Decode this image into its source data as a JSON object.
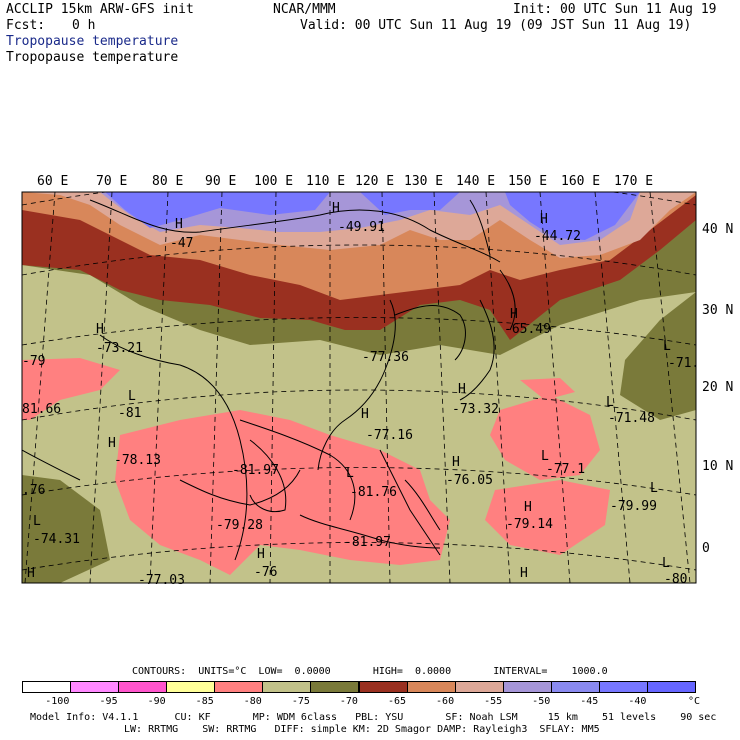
{
  "header": {
    "model": "ACCLIP 15km ARW-GFS init",
    "org": "NCAR/MMM",
    "init": "Init: 00 UTC Sun 11 Aug 19",
    "fcst_label": "Fcst:",
    "fcst_value": "0 h",
    "valid": "Valid: 00 UTC Sun 11 Aug 19 (09 JST Sun 11 Aug 19)",
    "field_title_1": "Tropopause temperature",
    "field_title_2": "Tropopause temperature"
  },
  "map": {
    "lon_labels": [
      "60 E",
      "70 E",
      "80 E",
      "90 E",
      "100 E",
      "110 E",
      "120 E",
      "130 E",
      "140 E",
      "150 E",
      "160 E",
      "170 E"
    ],
    "lat_labels": [
      "40 N",
      "30 N",
      "20 N",
      "10 N",
      "0"
    ],
    "colors": {
      "lt_m95": "#ff88ff",
      "m95_m90": "#ff55cc",
      "m90_m85": "#ffff99",
      "m85_m80": "#ff8080",
      "m80_m75": "#c2c28a",
      "m75_m70": "#7a7a3a",
      "m70_m65": "#9a3020",
      "m65_m60": "#d8875a",
      "m60_m55": "#dda898",
      "m55_m50": "#a696d8",
      "m50_m45": "#8a8af0",
      "gt_m45": "#7777ff"
    },
    "extremes": [
      {
        "type": "H",
        "value": "-47"
      },
      {
        "type": "H",
        "value": "-49.91"
      },
      {
        "type": "H",
        "value": "-44.72"
      },
      {
        "type": "H",
        "value": "-73.21"
      },
      {
        "type": "H",
        "value": "-65.49"
      },
      {
        "type": "",
        "value": "-77.36"
      },
      {
        "type": "",
        "value": "-79"
      },
      {
        "type": "L",
        "value": "-71."
      },
      {
        "type": "L",
        "value": "-81"
      },
      {
        "type": "",
        "value": "81.66"
      },
      {
        "type": "H",
        "value": "-73.32"
      },
      {
        "type": "L",
        "value": "-71.48"
      },
      {
        "type": "H",
        "value": "-77.16"
      },
      {
        "type": "H",
        "value": "-78.13"
      },
      {
        "type": "",
        "value": "-81.97"
      },
      {
        "type": "L",
        "value": "-81.76"
      },
      {
        "type": "H",
        "value": "-76.05"
      },
      {
        "type": "L",
        "value": "-77.1"
      },
      {
        "type": "",
        "value": ".76"
      },
      {
        "type": "L",
        "value": "-79.99"
      },
      {
        "type": "L",
        "value": "-74.31"
      },
      {
        "type": "",
        "value": "-79.28"
      },
      {
        "type": "H",
        "value": "-79.14"
      },
      {
        "type": "",
        "value": "-81.97"
      },
      {
        "type": "H",
        "value": "-76"
      },
      {
        "type": "L",
        "value": "-80"
      },
      {
        "type": "",
        "value": "-77.03"
      },
      {
        "type": "H",
        "value": ""
      },
      {
        "type": "H",
        "value": ""
      }
    ]
  },
  "contours": {
    "line": "CONTOURS:  UNITS=°C  LOW=  0.0000       HIGH=  0.0000       INTERVAL=    1000.0",
    "ticks": [
      "-100",
      "-95",
      "-90",
      "-85",
      "-80",
      "-75",
      "-70",
      "-65",
      "-60",
      "-55",
      "-50",
      "-45",
      "-40"
    ],
    "unit": "°C",
    "colors": [
      "#ffffff",
      "#ff88ff",
      "#ff55cc",
      "#ffff99",
      "#ff8080",
      "#c2c28a",
      "#7a7a3a",
      "#9a3020",
      "#d8875a",
      "#dda898",
      "#a696d8",
      "#8a8af0",
      "#7777ff",
      "#6666ff"
    ]
  },
  "footer": {
    "line1": "Model Info: V4.1.1      CU: KF       MP: WDM 6class   PBL: YSU       SF: Noah LSM     15 km    51 levels    90 sec",
    "line2": "LW: RRTMG    SW: RRTMG   DIFF: simple KM: 2D Smagor DAMP: Rayleigh3  SFLAY: MM5"
  }
}
